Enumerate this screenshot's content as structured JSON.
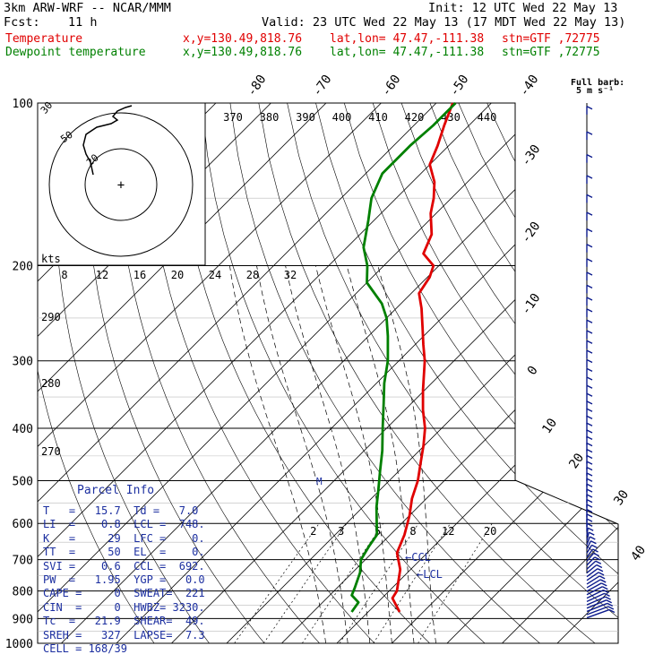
{
  "header": {
    "model": "3km ARW-WRF -- NCAR/MMM",
    "init": "Init: 12 UTC Wed 22 May 13",
    "fcst_label": "Fcst:",
    "fcst_value": "11 h",
    "valid": "Valid: 23 UTC Wed 22 May 13 (17 MDT Wed 22 May 13)",
    "temp_line": {
      "label": "Temperature",
      "xy": "x,y=130.49,818.76",
      "latlon": "lat,lon= 47.47,-111.38",
      "stn": "stn=GTF ,72775"
    },
    "dew_line": {
      "label": "Dewpoint temperature",
      "xy": "x,y=130.49,818.76",
      "latlon": "lat,lon= 47.47,-111.38",
      "stn": "stn=GTF ,72775"
    },
    "colors": {
      "temperature": "#e00000",
      "dewpoint": "#008000",
      "text": "#000000",
      "parcel": "#1c2fa0"
    }
  },
  "wind_legend": {
    "title": "Full barb:",
    "value": "5 m s⁻¹"
  },
  "parcel_info": {
    "title": "Parcel Info",
    "rows": [
      "T   =   15.7  Td =   7.0",
      "LI  =    0.8  LCL =  748.",
      "K   =     29  LFC =    0.",
      "TT  =     50  EL  =    0.",
      "SVI =    0.6  CCL =  692.",
      "PW  =   1.95  YGP =   0.0",
      "CAPE =     0  SWEAT=  221",
      "CIN  =     0  HWBZ= 3230.",
      "Tc  =   21.9  SHEAR=  49.",
      "SREH =   327  LAPSE=  7.3",
      "CELL = 168/39"
    ]
  },
  "skewt_labels": {
    "kts": "kts",
    "hodo_speed_labels": [
      "30",
      "50",
      "20"
    ],
    "hodo_axis_labels": [
      "8",
      "12",
      "16",
      "20",
      "24",
      "28",
      "32"
    ],
    "theta_labels": [
      "370",
      "380",
      "390",
      "400",
      "410",
      "420",
      "430",
      "440"
    ],
    "theta_side_labels": [
      "290",
      "280",
      "270"
    ],
    "mixing_ratio_labels": [
      "2",
      "3",
      "5",
      "8",
      "12",
      "20"
    ],
    "ccl_label": "CCL",
    "lcl_label": "LCL",
    "m_label": "M"
  },
  "chart_data": {
    "type": "skew-t",
    "ylabel": "",
    "pressure_ticks": [
      100,
      200,
      300,
      400,
      500,
      600,
      700,
      800,
      900,
      1000
    ],
    "isotherm_labels": [
      -80,
      -70,
      -60,
      -50,
      -40,
      -30,
      -20,
      -10,
      0,
      10,
      20,
      30,
      40
    ],
    "series": [
      {
        "name": "Temperature",
        "color": "#e00000",
        "points": [
          [
            875,
            15.7
          ],
          [
            825,
            11.9
          ],
          [
            800,
            11.4
          ],
          [
            730,
            8.1
          ],
          [
            680,
            4.5
          ],
          [
            630,
            2.6
          ],
          [
            580,
            0.0
          ],
          [
            540,
            -2.6
          ],
          [
            500,
            -4.8
          ],
          [
            460,
            -7.8
          ],
          [
            430,
            -10.2
          ],
          [
            400,
            -13.0
          ],
          [
            370,
            -16.7
          ],
          [
            340,
            -20.3
          ],
          [
            300,
            -25.3
          ],
          [
            280,
            -28.5
          ],
          [
            260,
            -31.8
          ],
          [
            240,
            -35.4
          ],
          [
            225,
            -38.6
          ],
          [
            210,
            -39.6
          ],
          [
            200,
            -41.0
          ],
          [
            190,
            -45.0
          ],
          [
            175,
            -47.0
          ],
          [
            160,
            -51.0
          ],
          [
            150,
            -53.2
          ],
          [
            140,
            -56.0
          ],
          [
            130,
            -60.0
          ],
          [
            120,
            -62.0
          ],
          [
            110,
            -64.5
          ],
          [
            100,
            -67.0
          ]
        ]
      },
      {
        "name": "Dewpoint temperature",
        "color": "#008000",
        "points": [
          [
            875,
            7.0
          ],
          [
            840,
            6.5
          ],
          [
            815,
            4.0
          ],
          [
            790,
            3.2
          ],
          [
            740,
            1.4
          ],
          [
            700,
            -0.8
          ],
          [
            660,
            -1.8
          ],
          [
            630,
            -2.4
          ],
          [
            600,
            -4.5
          ],
          [
            560,
            -7.5
          ],
          [
            520,
            -10.3
          ],
          [
            480,
            -13.4
          ],
          [
            440,
            -16.7
          ],
          [
            400,
            -20.7
          ],
          [
            360,
            -25.0
          ],
          [
            330,
            -28.6
          ],
          [
            300,
            -32.0
          ],
          [
            270,
            -36.5
          ],
          [
            250,
            -40.0
          ],
          [
            235,
            -43.5
          ],
          [
            215,
            -50.0
          ],
          [
            200,
            -53.0
          ],
          [
            185,
            -57.0
          ],
          [
            165,
            -61.0
          ],
          [
            150,
            -64.5
          ],
          [
            135,
            -67.0
          ],
          [
            120,
            -67.0
          ],
          [
            110,
            -66.5
          ],
          [
            100,
            -66.5
          ]
        ]
      }
    ]
  }
}
